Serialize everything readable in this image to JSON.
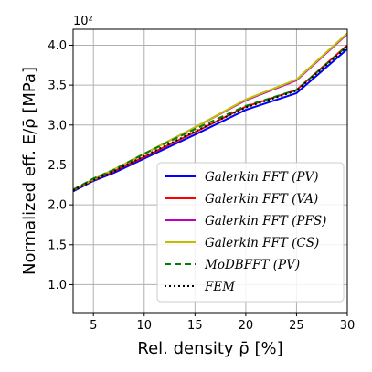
{
  "chart_data": {
    "type": "line",
    "xlabel": "Rel. density ρ̄ [%]",
    "ylabel": "Normalized eff. E/ρ̄ [MPa]",
    "y_multiplier": "10²",
    "xlim": [
      3,
      30
    ],
    "ylim": [
      0.65,
      4.2
    ],
    "xticks": [
      5,
      10,
      15,
      20,
      25,
      30
    ],
    "yticks": [
      1.0,
      1.5,
      2.0,
      2.5,
      3.0,
      3.5,
      4.0
    ],
    "xtick_labels": [
      "5",
      "10",
      "15",
      "20",
      "25",
      "30"
    ],
    "ytick_labels": [
      "1.0",
      "1.5",
      "2.0",
      "2.5",
      "3.0",
      "3.5",
      "4.0"
    ],
    "grid": true,
    "legend_position": "lower-right",
    "series": [
      {
        "name": "Galerkin FFT (PV)",
        "color": "#0000ff",
        "dash": "solid",
        "x": [
          3,
          5,
          7,
          10,
          15,
          20,
          25,
          30
        ],
        "y": [
          2.17,
          2.3,
          2.4,
          2.58,
          2.88,
          3.19,
          3.4,
          3.95
        ]
      },
      {
        "name": "Galerkin FFT (VA)",
        "color": "#ff0000",
        "dash": "solid",
        "x": [
          3,
          5,
          7,
          10,
          15,
          20,
          25,
          30
        ],
        "y": [
          2.18,
          2.31,
          2.42,
          2.6,
          2.91,
          3.23,
          3.44,
          4.0
        ]
      },
      {
        "name": "Galerkin FFT (PFS)",
        "color": "#bf00bf",
        "dash": "solid",
        "x": [
          3,
          5,
          7,
          10,
          15,
          20,
          25,
          30
        ],
        "y": [
          2.19,
          2.32,
          2.44,
          2.64,
          2.97,
          3.31,
          3.56,
          4.14
        ]
      },
      {
        "name": "Galerkin FFT (CS)",
        "color": "#bfbf00",
        "dash": "solid",
        "x": [
          3,
          5,
          7,
          10,
          15,
          20,
          25,
          30
        ],
        "y": [
          2.19,
          2.32,
          2.44,
          2.64,
          2.97,
          3.32,
          3.57,
          4.15
        ]
      },
      {
        "name": "MoDBFFT (PV)",
        "color": "#008000",
        "dash": "dashed",
        "x": [
          3,
          5,
          7,
          10,
          15,
          20,
          25,
          30
        ],
        "y": [
          2.19,
          2.33,
          2.44,
          2.64,
          2.95,
          3.24,
          3.44,
          3.99
        ]
      },
      {
        "name": "FEM",
        "color": "#000000",
        "dash": "dotted",
        "x": [
          3,
          5,
          7,
          10,
          15,
          20,
          25,
          30
        ],
        "y": [
          2.18,
          2.31,
          2.42,
          2.61,
          2.92,
          3.22,
          3.43,
          3.98
        ]
      }
    ]
  }
}
